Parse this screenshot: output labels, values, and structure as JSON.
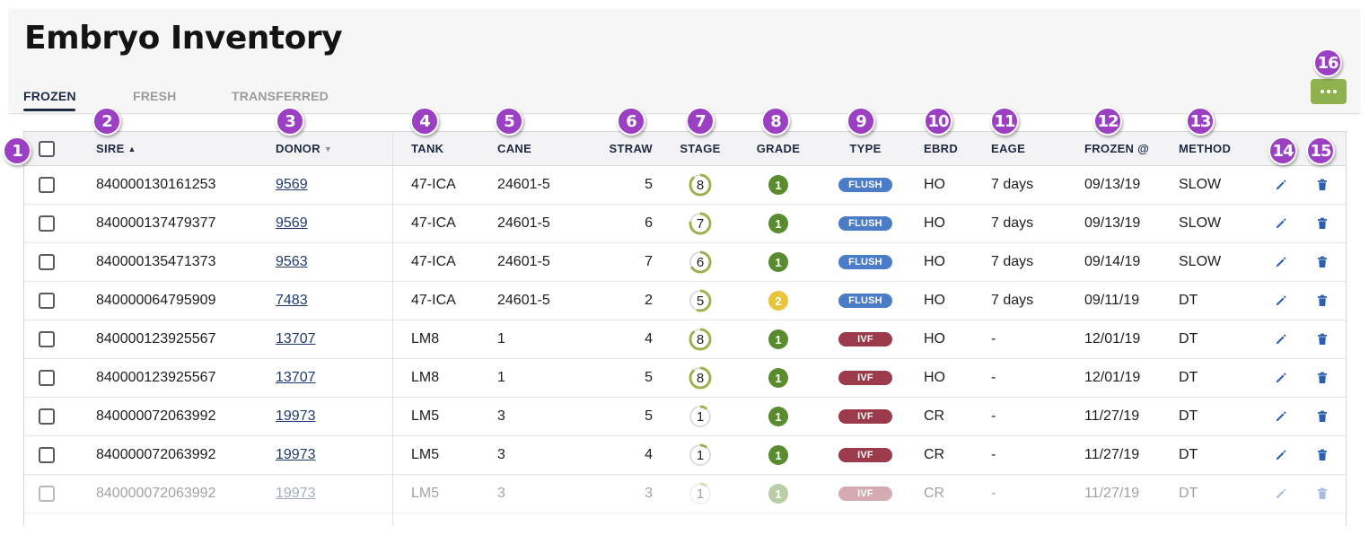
{
  "header": {
    "title": "Embryo Inventory"
  },
  "tabs": [
    {
      "label": "FROZEN",
      "active": true
    },
    {
      "label": "FRESH",
      "active": false
    },
    {
      "label": "TRANSFERRED",
      "active": false
    }
  ],
  "more_button": {
    "icon": "more-horizontal-icon",
    "color": "#8fb14e"
  },
  "table": {
    "columns": {
      "sire": "SIRE",
      "donor": "DONOR",
      "tank": "TANK",
      "cane": "CANE",
      "straw": "STRAW",
      "stage": "STAGE",
      "grade": "GRADE",
      "type": "TYPE",
      "ebrd": "EBRD",
      "eage": "EAGE",
      "frozen": "FROZEN @",
      "method": "METHOD"
    },
    "sort": {
      "column": "SIRE",
      "direction": "ascending"
    },
    "rows": [
      {
        "sire": "840000130161253",
        "donor": "9569",
        "tank": "47-ICA",
        "cane": "24601-5",
        "straw": "5",
        "stage": "8",
        "grade": "1",
        "type": "FLUSH",
        "ebrd": "HO",
        "eage": "7 days",
        "frozen": "09/13/19",
        "method": "SLOW"
      },
      {
        "sire": "840000137479377",
        "donor": "9569",
        "tank": "47-ICA",
        "cane": "24601-5",
        "straw": "6",
        "stage": "7",
        "grade": "1",
        "type": "FLUSH",
        "ebrd": "HO",
        "eage": "7 days",
        "frozen": "09/13/19",
        "method": "SLOW"
      },
      {
        "sire": "840000135471373",
        "donor": "9563",
        "tank": "47-ICA",
        "cane": "24601-5",
        "straw": "7",
        "stage": "6",
        "grade": "1",
        "type": "FLUSH",
        "ebrd": "HO",
        "eage": "7 days",
        "frozen": "09/14/19",
        "method": "SLOW"
      },
      {
        "sire": "840000064795909",
        "donor": "7483",
        "tank": "47-ICA",
        "cane": "24601-5",
        "straw": "2",
        "stage": "5",
        "grade": "2",
        "type": "FLUSH",
        "ebrd": "HO",
        "eage": "7 days",
        "frozen": "09/11/19",
        "method": "DT"
      },
      {
        "sire": "840000123925567",
        "donor": "13707",
        "tank": "LM8",
        "cane": "1",
        "straw": "4",
        "stage": "8",
        "grade": "1",
        "type": "IVF",
        "ebrd": "HO",
        "eage": "-",
        "frozen": "12/01/19",
        "method": "DT"
      },
      {
        "sire": "840000123925567",
        "donor": "13707",
        "tank": "LM8",
        "cane": "1",
        "straw": "5",
        "stage": "8",
        "grade": "1",
        "type": "IVF",
        "ebrd": "HO",
        "eage": "-",
        "frozen": "12/01/19",
        "method": "DT"
      },
      {
        "sire": "840000072063992",
        "donor": "19973",
        "tank": "LM5",
        "cane": "3",
        "straw": "5",
        "stage": "1",
        "grade": "1",
        "type": "IVF",
        "ebrd": "CR",
        "eage": "-",
        "frozen": "11/27/19",
        "method": "DT"
      },
      {
        "sire": "840000072063992",
        "donor": "19973",
        "tank": "LM5",
        "cane": "3",
        "straw": "4",
        "stage": "1",
        "grade": "1",
        "type": "IVF",
        "ebrd": "CR",
        "eage": "-",
        "frozen": "11/27/19",
        "method": "DT"
      },
      {
        "sire": "840000072063992",
        "donor": "19973",
        "tank": "LM5",
        "cane": "3",
        "straw": "3",
        "stage": "1",
        "grade": "1",
        "type": "IVF",
        "ebrd": "CR",
        "eage": "-",
        "frozen": "11/27/19",
        "method": "DT"
      }
    ],
    "row_actions": {
      "edit_icon": "pencil-icon",
      "delete_icon": "trash-icon"
    }
  },
  "colors": {
    "stage_ring": "#9cb14f",
    "stage_track": "#dcdcdc",
    "grade_1": "#5a8c2f",
    "grade_2": "#e8c43a",
    "flush": "#4a7cc7",
    "ivf": "#9a3a4a",
    "action": "#2b5fb4",
    "callout": "#9b3fc3"
  },
  "callouts": [
    "1",
    "2",
    "3",
    "4",
    "5",
    "6",
    "7",
    "8",
    "9",
    "10",
    "11",
    "12",
    "13",
    "14",
    "15",
    "16"
  ]
}
